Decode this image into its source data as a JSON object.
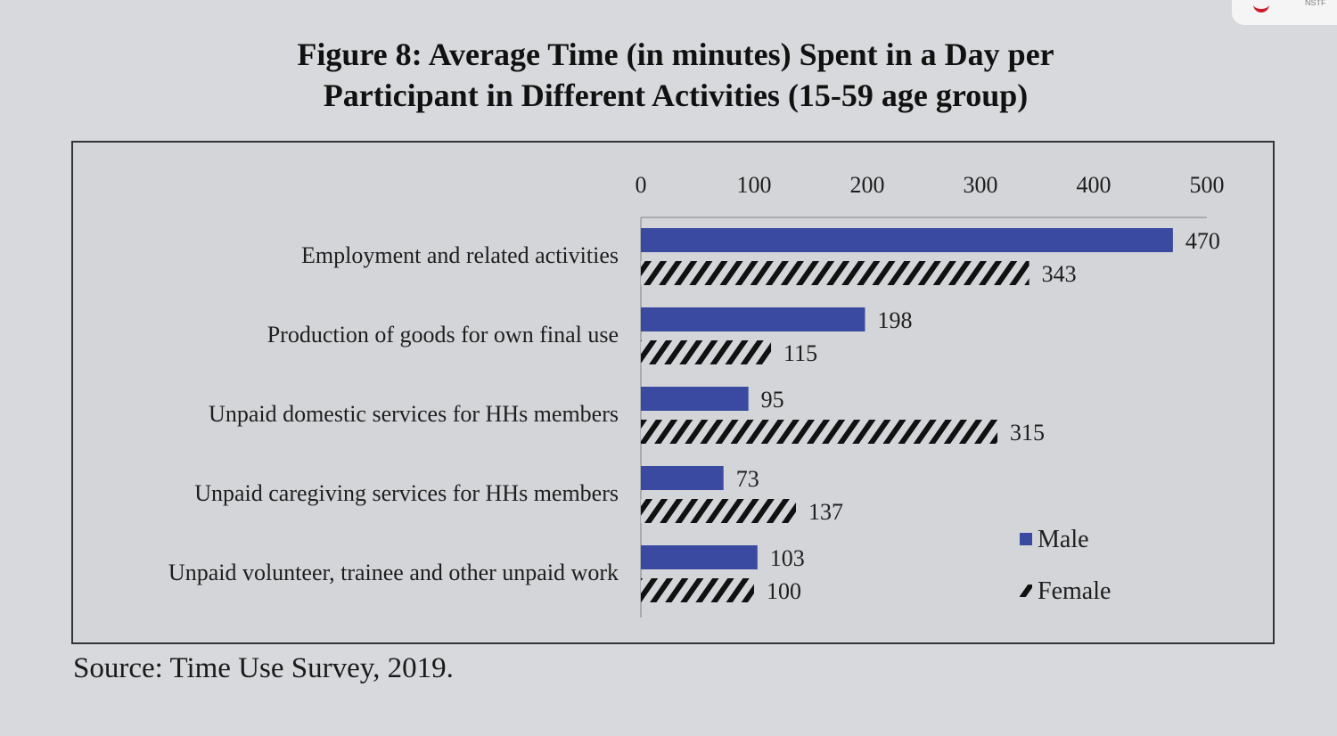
{
  "figure": {
    "title_line1": "Figure 8: Average Time (in minutes) Spent in a Day per",
    "title_line2": "Participant in Different Activities (15-59 age group)",
    "source": "Source: Time Use Survey, 2019."
  },
  "logo": {
    "text": "NSTF"
  },
  "colors": {
    "male": "#3a4aa0",
    "female_hatch": "#111111",
    "background": "#d7d9dc"
  },
  "chart_data": {
    "type": "bar",
    "orientation": "horizontal",
    "categories": [
      "Employment and related activities",
      "Production of goods for own final use",
      "Unpaid domestic services for HHs members",
      "Unpaid caregiving services for HHs members",
      "Unpaid volunteer, trainee and other unpaid work"
    ],
    "series": [
      {
        "name": "Male",
        "values": [
          470,
          198,
          95,
          73,
          103
        ],
        "color": "#3a4aa0",
        "fill": "solid"
      },
      {
        "name": "Female",
        "values": [
          343,
          115,
          315,
          137,
          100
        ],
        "color": "#111111",
        "fill": "diagonal-hatch"
      }
    ],
    "xlim": [
      0,
      500
    ],
    "xticks": [
      0,
      100,
      200,
      300,
      400,
      500
    ],
    "axis_position": "top",
    "legend_position": "bottom-right",
    "grid": false
  }
}
